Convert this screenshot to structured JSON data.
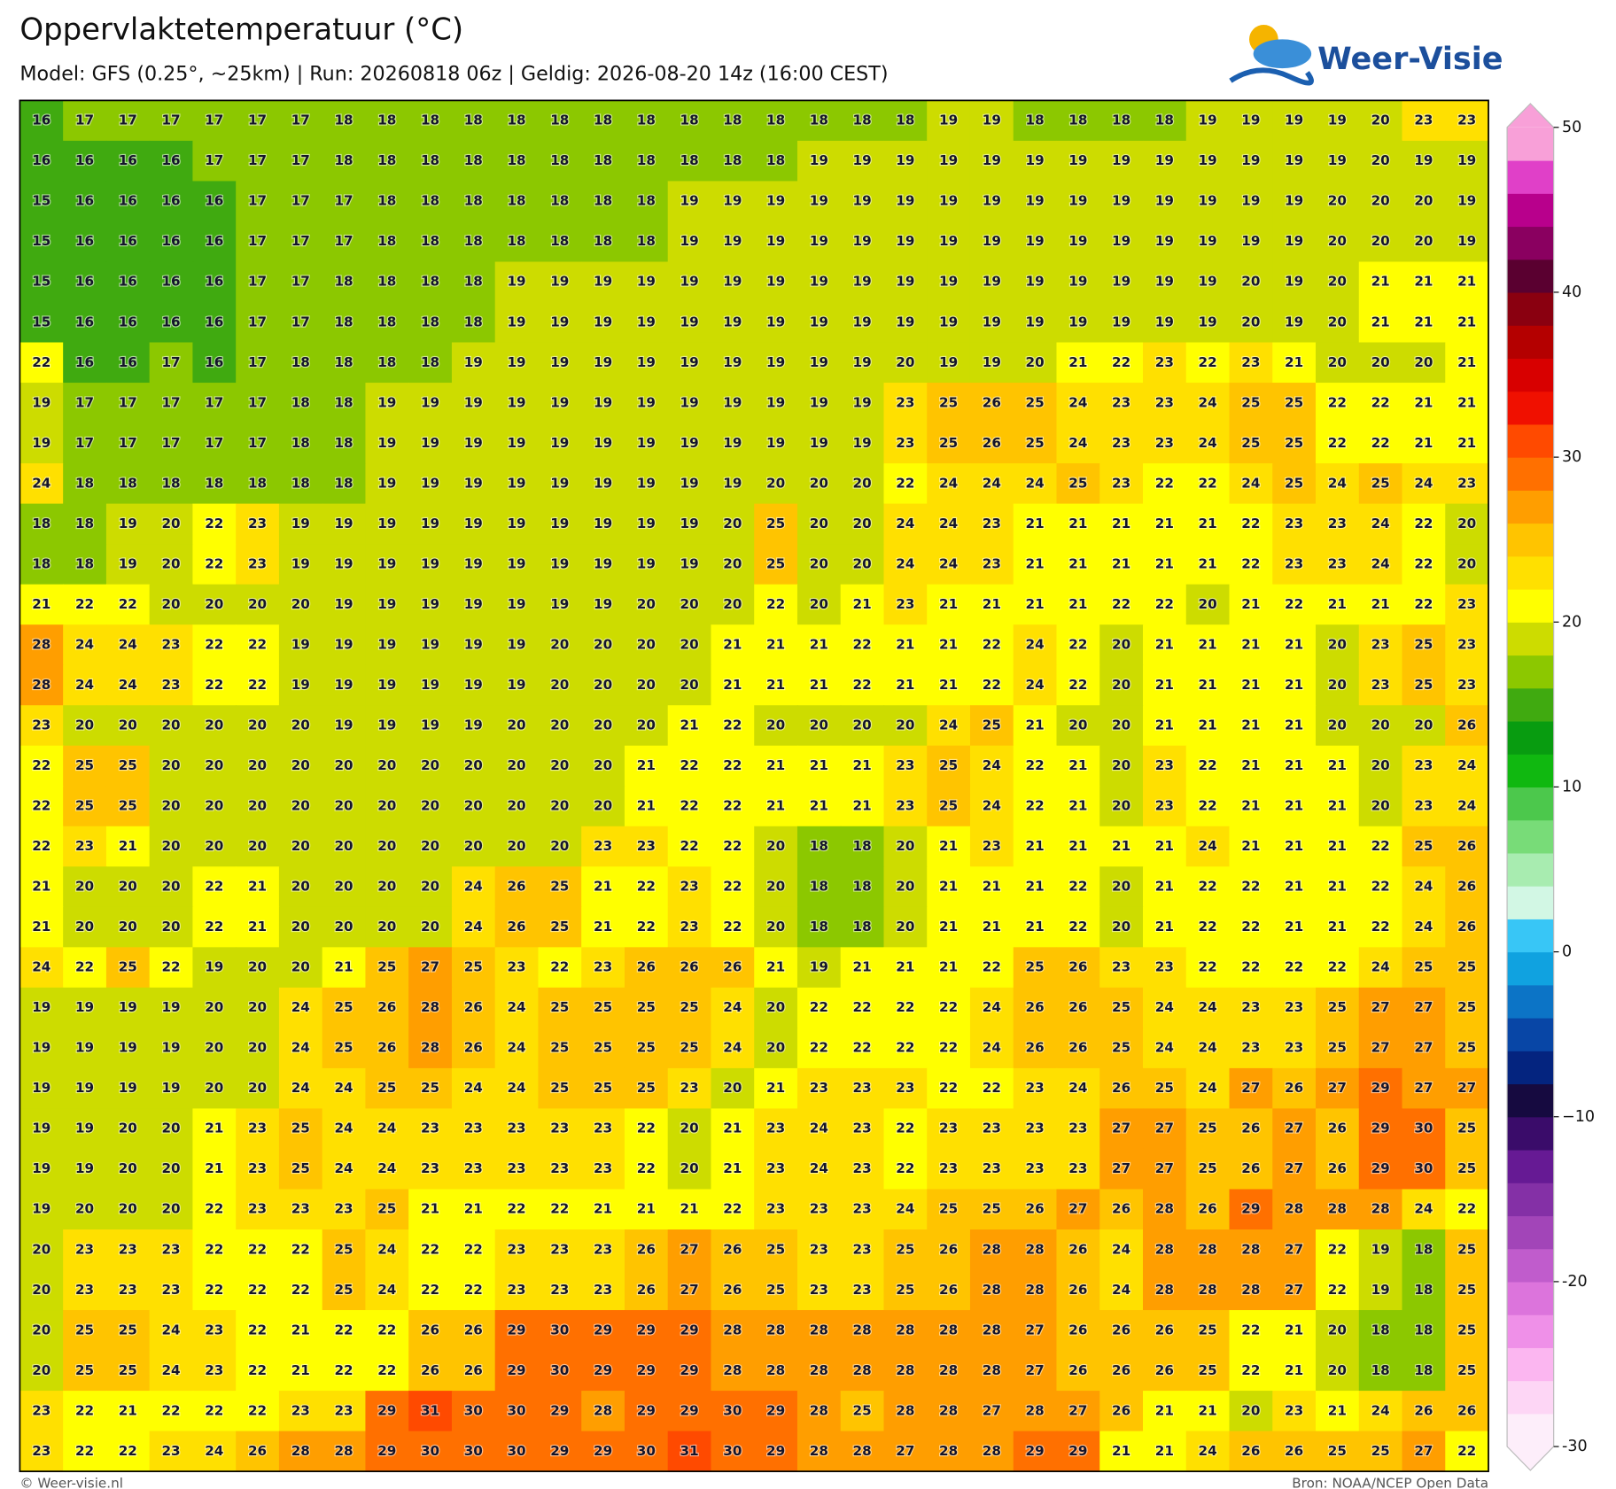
{
  "chart_data": {
    "type": "heatmap",
    "title": "Oppervlaktetemperatuur (°C)",
    "subtitle": "Model: GFS (0.25°, ~25km)  |  Run: 20260818 06z  |  Geldig: 2026-08-20 14z (16:00 CEST)",
    "logo": "Weer-Visie",
    "credit": "© Weer-visie.nl",
    "source": "Bron: NOAA/NCEP Open Data",
    "values": [
      [
        16,
        17,
        17,
        17,
        17,
        17,
        17,
        18,
        18,
        18,
        18,
        18,
        18,
        18,
        18,
        18,
        18,
        18,
        18,
        18,
        18,
        19,
        19,
        18,
        18,
        18,
        18,
        19,
        19,
        19,
        19,
        20,
        23,
        23
      ],
      [
        16,
        16,
        16,
        16,
        17,
        17,
        17,
        18,
        18,
        18,
        18,
        18,
        18,
        18,
        18,
        18,
        18,
        18,
        19,
        19,
        19,
        19,
        19,
        19,
        19,
        19,
        19,
        19,
        19,
        19,
        19,
        20,
        19,
        19
      ],
      [
        15,
        16,
        16,
        16,
        16,
        17,
        17,
        17,
        18,
        18,
        18,
        18,
        18,
        18,
        18,
        19,
        19,
        19,
        19,
        19,
        19,
        19,
        19,
        19,
        19,
        19,
        19,
        19,
        19,
        19,
        20,
        20,
        20,
        19
      ],
      [
        15,
        16,
        16,
        16,
        16,
        17,
        17,
        17,
        18,
        18,
        18,
        18,
        18,
        18,
        18,
        19,
        19,
        19,
        19,
        19,
        19,
        19,
        19,
        19,
        19,
        19,
        19,
        19,
        19,
        19,
        20,
        20,
        20,
        19
      ],
      [
        15,
        16,
        16,
        16,
        16,
        17,
        17,
        18,
        18,
        18,
        18,
        19,
        19,
        19,
        19,
        19,
        19,
        19,
        19,
        19,
        19,
        19,
        19,
        19,
        19,
        19,
        19,
        19,
        20,
        19,
        20,
        21,
        21,
        21
      ],
      [
        15,
        16,
        16,
        16,
        16,
        17,
        17,
        18,
        18,
        18,
        18,
        19,
        19,
        19,
        19,
        19,
        19,
        19,
        19,
        19,
        19,
        19,
        19,
        19,
        19,
        19,
        19,
        19,
        20,
        19,
        20,
        21,
        21,
        21
      ],
      [
        22,
        16,
        16,
        17,
        16,
        17,
        18,
        18,
        18,
        18,
        19,
        19,
        19,
        19,
        19,
        19,
        19,
        19,
        19,
        19,
        20,
        19,
        19,
        20,
        21,
        22,
        23,
        22,
        23,
        21,
        20,
        20,
        20,
        21
      ],
      [
        19,
        17,
        17,
        17,
        17,
        17,
        18,
        18,
        19,
        19,
        19,
        19,
        19,
        19,
        19,
        19,
        19,
        19,
        19,
        19,
        23,
        25,
        26,
        25,
        24,
        23,
        23,
        24,
        25,
        25,
        22,
        22,
        21,
        21
      ],
      [
        19,
        17,
        17,
        17,
        17,
        17,
        18,
        18,
        19,
        19,
        19,
        19,
        19,
        19,
        19,
        19,
        19,
        19,
        19,
        19,
        23,
        25,
        26,
        25,
        24,
        23,
        23,
        24,
        25,
        25,
        22,
        22,
        21,
        21
      ],
      [
        24,
        18,
        18,
        18,
        18,
        18,
        18,
        18,
        19,
        19,
        19,
        19,
        19,
        19,
        19,
        19,
        19,
        20,
        20,
        20,
        22,
        24,
        24,
        24,
        25,
        23,
        22,
        22,
        24,
        25,
        24,
        25,
        24,
        23
      ],
      [
        18,
        18,
        19,
        20,
        22,
        23,
        19,
        19,
        19,
        19,
        19,
        19,
        19,
        19,
        19,
        19,
        20,
        25,
        20,
        20,
        24,
        24,
        23,
        21,
        21,
        21,
        21,
        21,
        22,
        23,
        23,
        24,
        22,
        20
      ],
      [
        18,
        18,
        19,
        20,
        22,
        23,
        19,
        19,
        19,
        19,
        19,
        19,
        19,
        19,
        19,
        19,
        20,
        25,
        20,
        20,
        24,
        24,
        23,
        21,
        21,
        21,
        21,
        21,
        22,
        23,
        23,
        24,
        22,
        20
      ],
      [
        21,
        22,
        22,
        20,
        20,
        20,
        20,
        19,
        19,
        19,
        19,
        19,
        19,
        19,
        20,
        20,
        20,
        22,
        20,
        21,
        23,
        21,
        21,
        21,
        21,
        22,
        22,
        20,
        21,
        22,
        21,
        21,
        22,
        23
      ],
      [
        28,
        24,
        24,
        23,
        22,
        22,
        19,
        19,
        19,
        19,
        19,
        19,
        20,
        20,
        20,
        20,
        21,
        21,
        21,
        22,
        21,
        21,
        22,
        24,
        22,
        20,
        21,
        21,
        21,
        21,
        20,
        23,
        25,
        23
      ],
      [
        28,
        24,
        24,
        23,
        22,
        22,
        19,
        19,
        19,
        19,
        19,
        19,
        20,
        20,
        20,
        20,
        21,
        21,
        21,
        22,
        21,
        21,
        22,
        24,
        22,
        20,
        21,
        21,
        21,
        21,
        20,
        23,
        25,
        23
      ],
      [
        23,
        20,
        20,
        20,
        20,
        20,
        20,
        19,
        19,
        19,
        19,
        20,
        20,
        20,
        20,
        21,
        22,
        20,
        20,
        20,
        20,
        24,
        25,
        21,
        20,
        20,
        21,
        21,
        21,
        21,
        20,
        20,
        20,
        26
      ],
      [
        22,
        25,
        25,
        20,
        20,
        20,
        20,
        20,
        20,
        20,
        20,
        20,
        20,
        20,
        21,
        22,
        22,
        21,
        21,
        21,
        23,
        25,
        24,
        22,
        21,
        20,
        23,
        22,
        21,
        21,
        21,
        20,
        23,
        24
      ],
      [
        22,
        25,
        25,
        20,
        20,
        20,
        20,
        20,
        20,
        20,
        20,
        20,
        20,
        20,
        21,
        22,
        22,
        21,
        21,
        21,
        23,
        25,
        24,
        22,
        21,
        20,
        23,
        22,
        21,
        21,
        21,
        20,
        23,
        24
      ],
      [
        22,
        23,
        21,
        20,
        20,
        20,
        20,
        20,
        20,
        20,
        20,
        20,
        20,
        23,
        23,
        22,
        22,
        20,
        18,
        18,
        20,
        21,
        23,
        21,
        21,
        21,
        21,
        24,
        21,
        21,
        21,
        22,
        25,
        26
      ],
      [
        21,
        20,
        20,
        20,
        22,
        21,
        20,
        20,
        20,
        20,
        24,
        26,
        25,
        21,
        22,
        23,
        22,
        20,
        18,
        18,
        20,
        21,
        21,
        21,
        22,
        20,
        21,
        22,
        22,
        21,
        21,
        22,
        24,
        26
      ],
      [
        21,
        20,
        20,
        20,
        22,
        21,
        20,
        20,
        20,
        20,
        24,
        26,
        25,
        21,
        22,
        23,
        22,
        20,
        18,
        18,
        20,
        21,
        21,
        21,
        22,
        20,
        21,
        22,
        22,
        21,
        21,
        22,
        24,
        26
      ],
      [
        24,
        22,
        25,
        22,
        19,
        20,
        20,
        21,
        25,
        27,
        25,
        23,
        22,
        23,
        26,
        26,
        26,
        21,
        19,
        21,
        21,
        21,
        22,
        25,
        26,
        23,
        23,
        22,
        22,
        22,
        22,
        24,
        25,
        25
      ],
      [
        19,
        19,
        19,
        19,
        20,
        20,
        24,
        25,
        26,
        28,
        26,
        24,
        25,
        25,
        25,
        25,
        24,
        20,
        22,
        22,
        22,
        22,
        24,
        26,
        26,
        25,
        24,
        24,
        23,
        23,
        25,
        27,
        27,
        25
      ],
      [
        19,
        19,
        19,
        19,
        20,
        20,
        24,
        25,
        26,
        28,
        26,
        24,
        25,
        25,
        25,
        25,
        24,
        20,
        22,
        22,
        22,
        22,
        24,
        26,
        26,
        25,
        24,
        24,
        23,
        23,
        25,
        27,
        27,
        25
      ],
      [
        19,
        19,
        19,
        19,
        20,
        20,
        24,
        24,
        25,
        25,
        24,
        24,
        25,
        25,
        25,
        23,
        20,
        21,
        23,
        23,
        23,
        22,
        22,
        23,
        24,
        26,
        25,
        24,
        27,
        26,
        27,
        29,
        27,
        27
      ],
      [
        19,
        19,
        20,
        20,
        21,
        23,
        25,
        24,
        24,
        23,
        23,
        23,
        23,
        23,
        22,
        20,
        21,
        23,
        24,
        23,
        22,
        23,
        23,
        23,
        23,
        27,
        27,
        25,
        26,
        27,
        26,
        29,
        30,
        25
      ],
      [
        19,
        19,
        20,
        20,
        21,
        23,
        25,
        24,
        24,
        23,
        23,
        23,
        23,
        23,
        22,
        20,
        21,
        23,
        24,
        23,
        22,
        23,
        23,
        23,
        23,
        27,
        27,
        25,
        26,
        27,
        26,
        29,
        30,
        25
      ],
      [
        19,
        20,
        20,
        20,
        22,
        23,
        23,
        23,
        25,
        21,
        21,
        22,
        22,
        21,
        21,
        21,
        22,
        23,
        23,
        23,
        24,
        25,
        25,
        26,
        27,
        26,
        28,
        26,
        29,
        28,
        28,
        28,
        24,
        22
      ],
      [
        20,
        23,
        23,
        23,
        22,
        22,
        22,
        25,
        24,
        22,
        22,
        23,
        23,
        23,
        26,
        27,
        26,
        25,
        23,
        23,
        25,
        26,
        28,
        28,
        26,
        24,
        28,
        28,
        28,
        27,
        22,
        19,
        18,
        25
      ],
      [
        20,
        23,
        23,
        23,
        22,
        22,
        22,
        25,
        24,
        22,
        22,
        23,
        23,
        23,
        26,
        27,
        26,
        25,
        23,
        23,
        25,
        26,
        28,
        28,
        26,
        24,
        28,
        28,
        28,
        27,
        22,
        19,
        18,
        25
      ],
      [
        20,
        25,
        25,
        24,
        23,
        22,
        21,
        22,
        22,
        26,
        26,
        29,
        30,
        29,
        29,
        29,
        28,
        28,
        28,
        28,
        28,
        28,
        28,
        27,
        26,
        26,
        26,
        25,
        22,
        21,
        20,
        18,
        18,
        25
      ],
      [
        20,
        25,
        25,
        24,
        23,
        22,
        21,
        22,
        22,
        26,
        26,
        29,
        30,
        29,
        29,
        29,
        28,
        28,
        28,
        28,
        28,
        28,
        28,
        27,
        26,
        26,
        26,
        25,
        22,
        21,
        20,
        18,
        18,
        25
      ],
      [
        23,
        22,
        21,
        22,
        22,
        22,
        23,
        23,
        29,
        31,
        30,
        30,
        29,
        28,
        29,
        29,
        30,
        29,
        28,
        25,
        28,
        28,
        27,
        28,
        27,
        26,
        21,
        21,
        20,
        23,
        21,
        24,
        26,
        26
      ],
      [
        23,
        22,
        22,
        23,
        24,
        26,
        28,
        28,
        29,
        30,
        30,
        30,
        29,
        29,
        30,
        31,
        30,
        29,
        28,
        28,
        27,
        28,
        28,
        29,
        29,
        21,
        21,
        24,
        26,
        26,
        25,
        25,
        27,
        22
      ]
    ],
    "colorbar": {
      "lim": [
        -30,
        50
      ],
      "ticks": [
        -30,
        -20,
        {
          "value": -10,
          "label": "−10"
        },
        0,
        10,
        20,
        30,
        40,
        50
      ],
      "colors": [
        "#fdeefa",
        "#fdd6f5",
        "#fbb6f0",
        "#ef90e8",
        "#dc74dc",
        "#c05ccc",
        "#a245b8",
        "#8430a6",
        "#661a94",
        "#3a0c6a",
        "#160a40",
        "#04247f",
        "#0846a6",
        "#0c74c6",
        "#10a2e0",
        "#38c6f6",
        "#d2f7e4",
        "#a8ecb0",
        "#78dc78",
        "#4cc84c",
        "#10b810",
        "#089c10",
        "#40aa10",
        "#8cc800",
        "#cddc00",
        "#ffff00",
        "#ffe000",
        "#ffc400",
        "#ff9e00",
        "#ff7000",
        "#ff4a00",
        "#f01000",
        "#d80000",
        "#b40000",
        "#8a0010",
        "#5a0030",
        "#8a0060",
        "#b8008c",
        "#e040c8",
        "#f8a0d8"
      ]
    }
  }
}
